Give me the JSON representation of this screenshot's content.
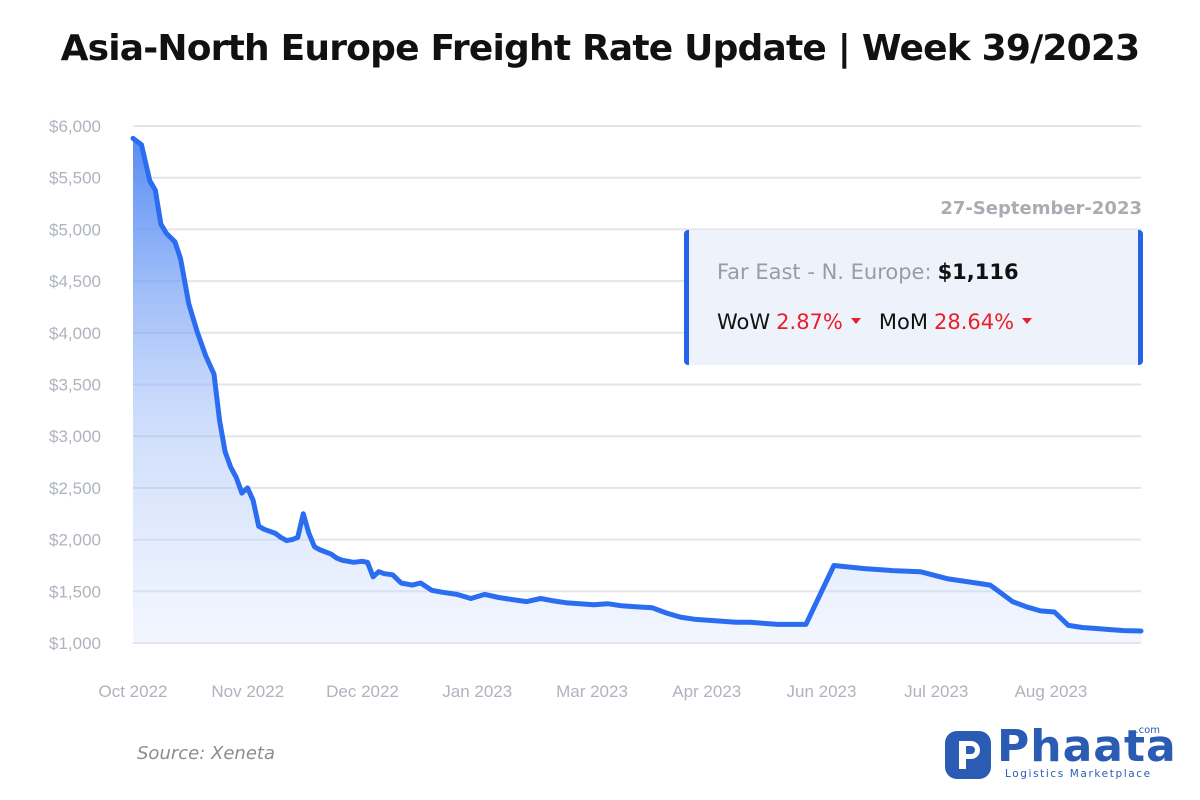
{
  "title": "Asia-North Europe Freight Rate Update | Week 39/2023",
  "tooltip": {
    "date": "27-September-2023",
    "route_label": "Far East - N. Europe:",
    "route_value": "$1,116",
    "wow_label": "WoW",
    "wow_value": "2.87%",
    "mom_label": "MoM",
    "mom_value": "28.64%",
    "change_direction": "down",
    "change_color": "#e8202a",
    "accent_color": "#2563eb"
  },
  "source": "Source: Xeneta",
  "logo": {
    "word": "Phaata",
    "tld": ".com",
    "tagline": "Logistics Marketplace",
    "color": "#2a5cb3"
  },
  "chart_data": {
    "type": "area",
    "title": "Asia-North Europe Freight Rate Update | Week 39/2023",
    "xlabel": "",
    "ylabel": "",
    "grid": true,
    "line_color": "#2b6df0",
    "fill_color": "#5b8ff5",
    "ylim": [
      1000,
      6000
    ],
    "yticks": [
      "$1,000",
      "$1,500",
      "$2,000",
      "$2,500",
      "$3,000",
      "$3,500",
      "$4,000",
      "$4,500",
      "$5,000",
      "$5,500",
      "$6,000"
    ],
    "xticks": [
      "Oct 2022",
      "Nov 2022",
      "Dec 2022",
      "Jan 2023",
      "Mar 2023",
      "Apr 2023",
      "Jun 2023",
      "Jul 2023",
      "Aug 2023"
    ],
    "xrange": [
      "2022-10-01",
      "2023-09-27"
    ],
    "x": [
      "2022-10-01",
      "2022-10-04",
      "2022-10-07",
      "2022-10-09",
      "2022-10-11",
      "2022-10-13",
      "2022-10-16",
      "2022-10-18",
      "2022-10-21",
      "2022-10-24",
      "2022-10-27",
      "2022-10-30",
      "2022-11-01",
      "2022-11-03",
      "2022-11-05",
      "2022-11-07",
      "2022-11-09",
      "2022-11-11",
      "2022-11-13",
      "2022-11-15",
      "2022-11-17",
      "2022-11-19",
      "2022-11-21",
      "2022-11-23",
      "2022-11-25",
      "2022-11-27",
      "2022-11-29",
      "2022-12-01",
      "2022-12-03",
      "2022-12-05",
      "2022-12-07",
      "2022-12-09",
      "2022-12-11",
      "2022-12-13",
      "2022-12-15",
      "2022-12-17",
      "2022-12-19",
      "2022-12-22",
      "2022-12-24",
      "2022-12-26",
      "2022-12-28",
      "2022-12-30",
      "2023-01-02",
      "2023-01-05",
      "2023-01-09",
      "2023-01-12",
      "2023-01-16",
      "2023-01-20",
      "2023-01-25",
      "2023-01-30",
      "2023-02-04",
      "2023-02-09",
      "2023-02-14",
      "2023-02-19",
      "2023-02-24",
      "2023-02-28",
      "2023-03-05",
      "2023-03-10",
      "2023-03-15",
      "2023-03-20",
      "2023-03-25",
      "2023-03-30",
      "2023-04-05",
      "2023-04-10",
      "2023-04-15",
      "2023-04-20",
      "2023-04-25",
      "2023-04-30",
      "2023-05-05",
      "2023-05-10",
      "2023-05-20",
      "2023-05-30",
      "2023-06-09",
      "2023-06-20",
      "2023-06-30",
      "2023-07-10",
      "2023-07-20",
      "2023-07-30",
      "2023-08-04",
      "2023-08-07",
      "2023-08-12",
      "2023-08-17",
      "2023-08-22",
      "2023-08-27",
      "2023-09-01",
      "2023-09-06",
      "2023-09-11",
      "2023-09-16",
      "2023-09-21",
      "2023-09-27"
    ],
    "series": [
      {
        "values": [
          5880,
          5820,
          5470,
          5380,
          5050,
          4960,
          4880,
          4720,
          4280,
          4010,
          3780,
          3600,
          3150,
          2850,
          2700,
          2600,
          2450,
          2500,
          2380,
          2130,
          2100,
          2080,
          2060,
          2020,
          1990,
          2000,
          2020,
          2250,
          2060,
          1930,
          1900,
          1880,
          1860,
          1820,
          1800,
          1790,
          1780,
          1790,
          1780,
          1640,
          1690,
          1670,
          1660,
          1580,
          1560,
          1580,
          1510,
          1490,
          1470,
          1430,
          1470,
          1440,
          1420,
          1400,
          1430,
          1410,
          1390,
          1380,
          1370,
          1380,
          1360,
          1350,
          1340,
          1290,
          1250,
          1230,
          1220,
          1210,
          1200,
          1200,
          1180,
          1180,
          1750,
          1720,
          1700,
          1690,
          1620,
          1580,
          1560,
          1500,
          1400,
          1350,
          1310,
          1300,
          1170,
          1150,
          1140,
          1130,
          1120,
          1116
        ]
      }
    ]
  }
}
